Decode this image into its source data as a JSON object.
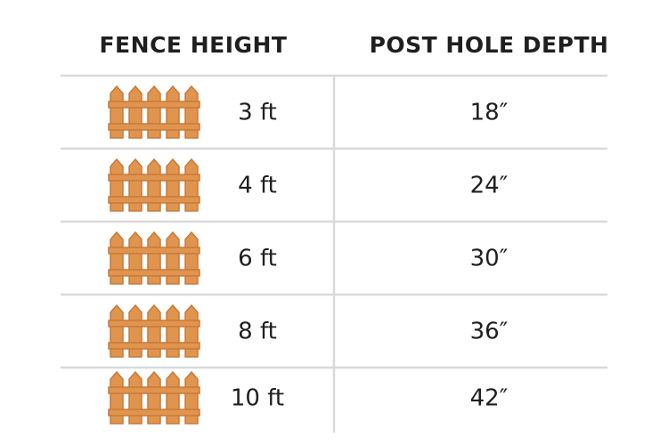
{
  "header": {
    "columns": [
      "FENCE HEIGHT",
      "POST HOLE DEPTH"
    ]
  },
  "table": {
    "rows": [
      [
        "3 ft",
        "18″"
      ],
      [
        "4 ft",
        "24″"
      ],
      [
        "6 ft",
        "30″"
      ],
      [
        "8 ft",
        "36″"
      ],
      [
        "10 ft",
        "42″"
      ]
    ]
  }
}
